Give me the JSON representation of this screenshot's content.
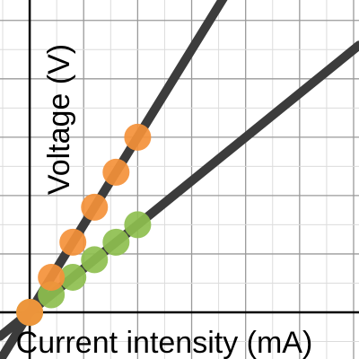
{
  "chart_data": {
    "type": "scatter",
    "title": "",
    "xlabel": "Current intensity (mA)",
    "ylabel": "Voltage (V)",
    "xlim": [
      -0.55,
      6.1
    ],
    "ylim": [
      -0.8,
      5.35
    ],
    "grid": true,
    "series": [
      {
        "color": "#f4913a",
        "fit_line": {
          "slope": 1.5,
          "intercept": 0
        },
        "points": [
          {
            "x": 0.0,
            "y": 0.0
          },
          {
            "x": 0.4,
            "y": 0.6
          },
          {
            "x": 0.8,
            "y": 1.2
          },
          {
            "x": 1.2,
            "y": 1.8
          },
          {
            "x": 1.6,
            "y": 2.4
          },
          {
            "x": 2.0,
            "y": 3.0
          }
        ]
      },
      {
        "color": "#8ebf4f",
        "fit_line": {
          "slope": 0.75,
          "intercept": 0
        },
        "points": [
          {
            "x": 0.0,
            "y": 0.0
          },
          {
            "x": 0.4,
            "y": 0.3
          },
          {
            "x": 0.8,
            "y": 0.6
          },
          {
            "x": 1.2,
            "y": 0.9
          },
          {
            "x": 1.6,
            "y": 1.2
          },
          {
            "x": 2.0,
            "y": 1.5
          }
        ]
      }
    ]
  }
}
